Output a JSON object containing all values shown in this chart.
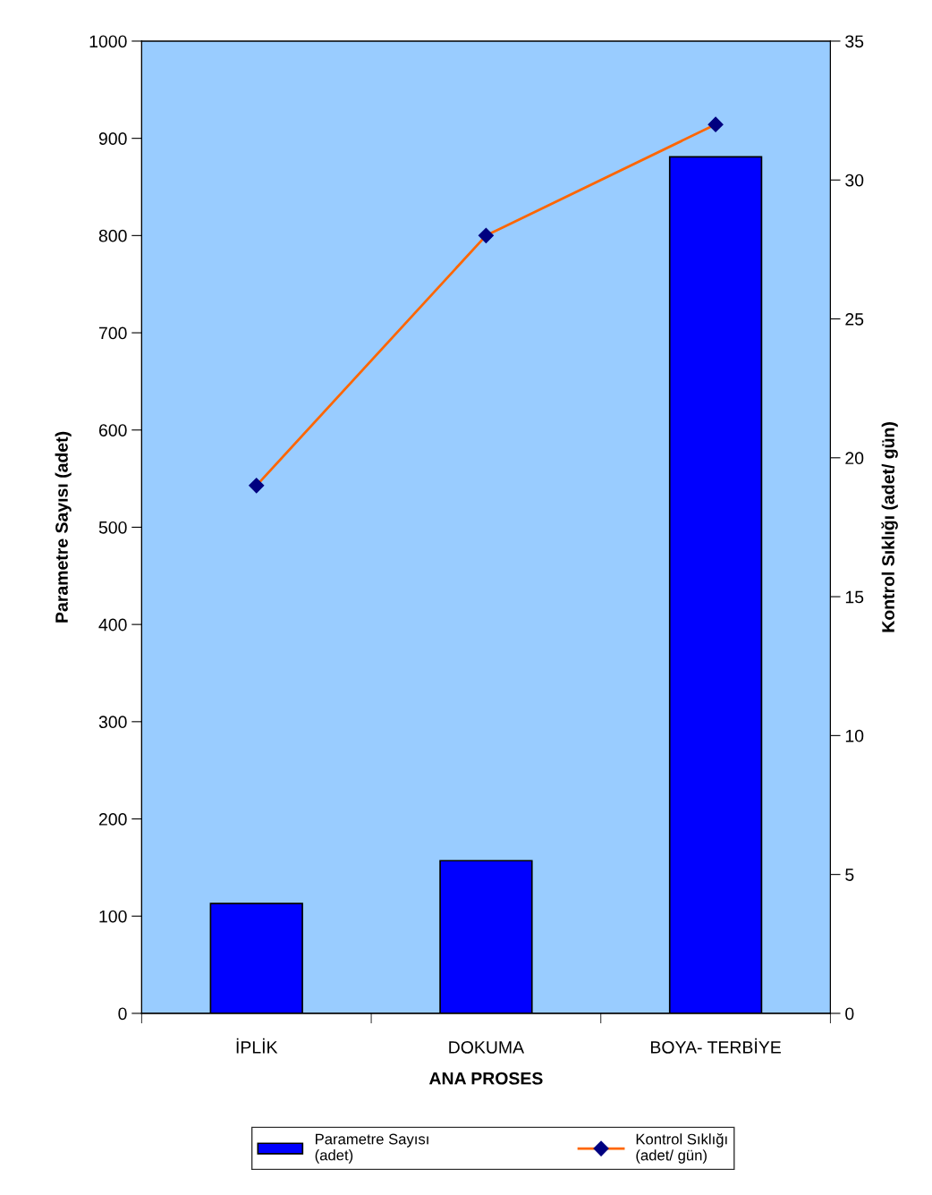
{
  "chart_data": {
    "type": "bar",
    "xlabel": "ANA PROSES",
    "ylabel": "Parametre Sayısı (adet)",
    "y2label": "Kontrol Sıklığı (adet/ gün)",
    "categories": [
      "İPLİK",
      "DOKUMA",
      "BOYA- TERBİYE"
    ],
    "series": [
      {
        "name": "Parametre Sayısı\n(adet)",
        "color": "#0000ff",
        "values": [
          113,
          157,
          881
        ]
      },
      {
        "name": "Kontrol Sıklığı\n(adet/ gün)",
        "type": "line",
        "axis": "y2",
        "color": "#ff6600",
        "marker": "diamond",
        "values": [
          19,
          28,
          32
        ]
      }
    ],
    "ylim": [
      0,
      1000
    ],
    "yticks": [
      0,
      100,
      200,
      300,
      400,
      500,
      600,
      700,
      800,
      900,
      1000
    ],
    "y2lim": [
      0,
      35
    ],
    "y2ticks": [
      0,
      5,
      10,
      15,
      20,
      25,
      30,
      35
    ],
    "grid": false,
    "legend": "bottom"
  }
}
